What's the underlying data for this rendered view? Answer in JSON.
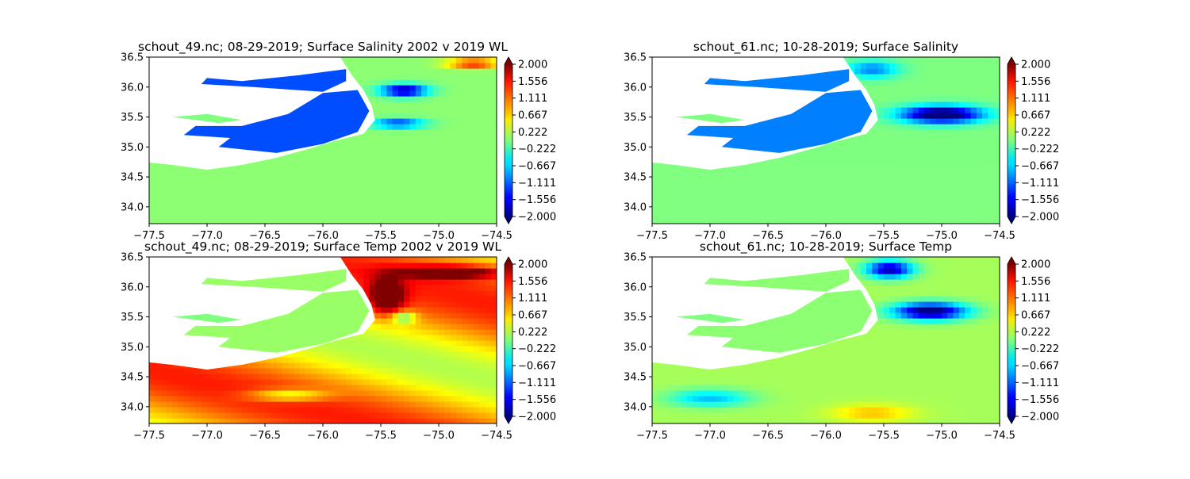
{
  "figure": {
    "background": "#ffffff"
  },
  "colormap": "jet",
  "chart_data": [
    {
      "type": "heatmap",
      "title": "schout_49.nc; 08-29-2019; Surface Salinity 2002 v 2019 WL",
      "xlabel": "",
      "ylabel": "",
      "xlim": [
        -77.5,
        -74.5
      ],
      "ylim": [
        33.72,
        36.5
      ],
      "x_ticks": [
        "−77.5",
        "−77.0",
        "−76.5",
        "−76.0",
        "−75.5",
        "−75.0",
        "−74.5"
      ],
      "y_ticks": [
        "34.0",
        "34.5",
        "35.0",
        "35.5",
        "36.0",
        "36.5"
      ],
      "colorbar": {
        "range": [
          -2.0,
          2.0
        ],
        "extend": "both",
        "ticks": [
          "2.000",
          "1.556",
          "1.111",
          "0.667",
          "0.222",
          "−0.222",
          "−0.667",
          "−1.111",
          "−1.556",
          "−2.000"
        ]
      },
      "field": "salinity",
      "background_value": 0.05
    },
    {
      "type": "heatmap",
      "title": "schout_61.nc; 10-28-2019; Surface Salinity",
      "xlabel": "",
      "ylabel": "",
      "xlim": [
        -77.5,
        -74.5
      ],
      "ylim": [
        33.72,
        36.5
      ],
      "x_ticks": [
        "−77.5",
        "−77.0",
        "−76.5",
        "−76.0",
        "−75.5",
        "−75.0",
        "−74.5"
      ],
      "y_ticks": [
        "34.0",
        "34.5",
        "35.0",
        "35.5",
        "36.0",
        "36.5"
      ],
      "colorbar": {
        "range": [
          -2.0,
          2.0
        ],
        "extend": "both",
        "ticks": [
          "2.000",
          "1.556",
          "1.111",
          "0.667",
          "0.222",
          "−0.222",
          "−0.667",
          "−1.111",
          "−1.556",
          "−2.000"
        ]
      },
      "field": "salinity",
      "background_value": 0.0
    },
    {
      "type": "heatmap",
      "title": "schout_49.nc; 08-29-2019; Surface Temp 2002 v 2019 WL",
      "xlabel": "",
      "ylabel": "",
      "xlim": [
        -77.5,
        -74.5
      ],
      "ylim": [
        33.72,
        36.5
      ],
      "x_ticks": [
        "−77.5",
        "−77.0",
        "−76.5",
        "−76.0",
        "−75.5",
        "−75.0",
        "−74.5"
      ],
      "y_ticks": [
        "34.0",
        "34.5",
        "35.0",
        "35.5",
        "36.0",
        "36.5"
      ],
      "colorbar": {
        "range": [
          -2.0,
          2.0
        ],
        "extend": "both",
        "ticks": [
          "2.000",
          "1.556",
          "1.111",
          "0.667",
          "0.222",
          "−0.222",
          "−0.667",
          "−1.111",
          "−1.556",
          "−2.000"
        ]
      },
      "field": "temperature",
      "background_value": 0.8
    },
    {
      "type": "heatmap",
      "title": "schout_61.nc; 10-28-2019; Surface Temp",
      "xlabel": "",
      "ylabel": "",
      "xlim": [
        -77.5,
        -74.5
      ],
      "ylim": [
        33.72,
        36.5
      ],
      "x_ticks": [
        "−77.5",
        "−77.0",
        "−76.5",
        "−76.0",
        "−75.5",
        "−75.0",
        "−74.5"
      ],
      "y_ticks": [
        "34.0",
        "34.5",
        "35.0",
        "35.5",
        "36.0",
        "36.5"
      ],
      "colorbar": {
        "range": [
          -2.0,
          2.0
        ],
        "extend": "both",
        "ticks": [
          "2.000",
          "1.556",
          "1.111",
          "0.667",
          "0.222",
          "−0.222",
          "−0.667",
          "−1.111",
          "−1.556",
          "−2.000"
        ]
      },
      "field": "temperature",
      "background_value": 0.15
    }
  ]
}
